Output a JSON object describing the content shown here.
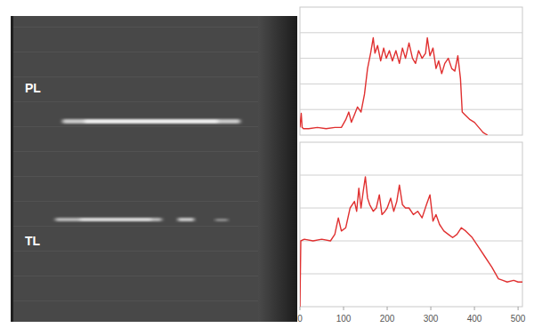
{
  "image_panel": {
    "labels": [
      "PL",
      "TL"
    ]
  },
  "chart_data": [
    {
      "type": "line",
      "color": "#e03030",
      "xlim": [
        0,
        510
      ],
      "ylim": [
        0,
        5
      ],
      "yticks": [
        1,
        2,
        3,
        4
      ],
      "grid": true,
      "tick_labels": false,
      "x": [
        0,
        3,
        5,
        8,
        20,
        40,
        60,
        80,
        95,
        105,
        112,
        118,
        125,
        132,
        140,
        148,
        155,
        162,
        168,
        172,
        178,
        185,
        192,
        198,
        205,
        212,
        220,
        228,
        235,
        242,
        250,
        258,
        265,
        272,
        280,
        288,
        292,
        298,
        305,
        312,
        318,
        325,
        332,
        340,
        348,
        355,
        362,
        368,
        372,
        378,
        390,
        400,
        410,
        420,
        430
      ],
      "values": [
        0.3,
        0.85,
        0.3,
        0.25,
        0.25,
        0.3,
        0.25,
        0.3,
        0.3,
        0.6,
        0.9,
        0.5,
        0.8,
        1.1,
        0.9,
        1.6,
        2.6,
        3.2,
        3.8,
        3.2,
        3.5,
        2.9,
        3.4,
        3.0,
        3.3,
        2.9,
        3.3,
        2.8,
        3.4,
        3.0,
        3.6,
        3.0,
        2.8,
        3.3,
        3.0,
        3.2,
        3.8,
        3.1,
        3.4,
        2.6,
        2.9,
        2.4,
        2.8,
        3.0,
        2.6,
        2.5,
        3.1,
        2.2,
        0.9,
        0.8,
        0.6,
        0.5,
        0.3,
        0.1,
        0
      ]
    },
    {
      "type": "line",
      "color": "#e03030",
      "xlim": [
        0,
        510
      ],
      "ylim": [
        0,
        5
      ],
      "xticks": [
        0,
        100,
        200,
        300,
        400,
        500
      ],
      "yticks": [
        1,
        2,
        3,
        4
      ],
      "grid": true,
      "tick_labels": "x",
      "x": [
        0,
        2,
        10,
        30,
        50,
        70,
        80,
        88,
        95,
        105,
        115,
        125,
        130,
        135,
        140,
        145,
        150,
        155,
        160,
        168,
        175,
        182,
        188,
        195,
        200,
        208,
        215,
        222,
        228,
        235,
        242,
        250,
        260,
        270,
        280,
        290,
        298,
        305,
        312,
        320,
        330,
        340,
        350,
        360,
        370,
        380,
        395,
        410,
        425,
        440,
        455,
        465,
        475,
        490,
        500,
        510
      ],
      "values": [
        0,
        2.0,
        2.05,
        2.0,
        2.05,
        2.0,
        2.2,
        2.7,
        2.3,
        2.4,
        3.0,
        3.2,
        2.9,
        3.6,
        3.0,
        3.5,
        3.95,
        3.3,
        3.1,
        2.9,
        3.0,
        3.4,
        2.8,
        2.9,
        3.0,
        3.3,
        2.9,
        3.2,
        3.7,
        3.1,
        3.0,
        3.0,
        2.8,
        2.9,
        2.7,
        3.1,
        3.4,
        2.6,
        2.8,
        2.5,
        2.3,
        2.2,
        2.1,
        2.2,
        2.4,
        2.3,
        2.1,
        1.8,
        1.5,
        1.2,
        0.85,
        0.8,
        0.75,
        0.8,
        0.75,
        0.75
      ]
    }
  ]
}
